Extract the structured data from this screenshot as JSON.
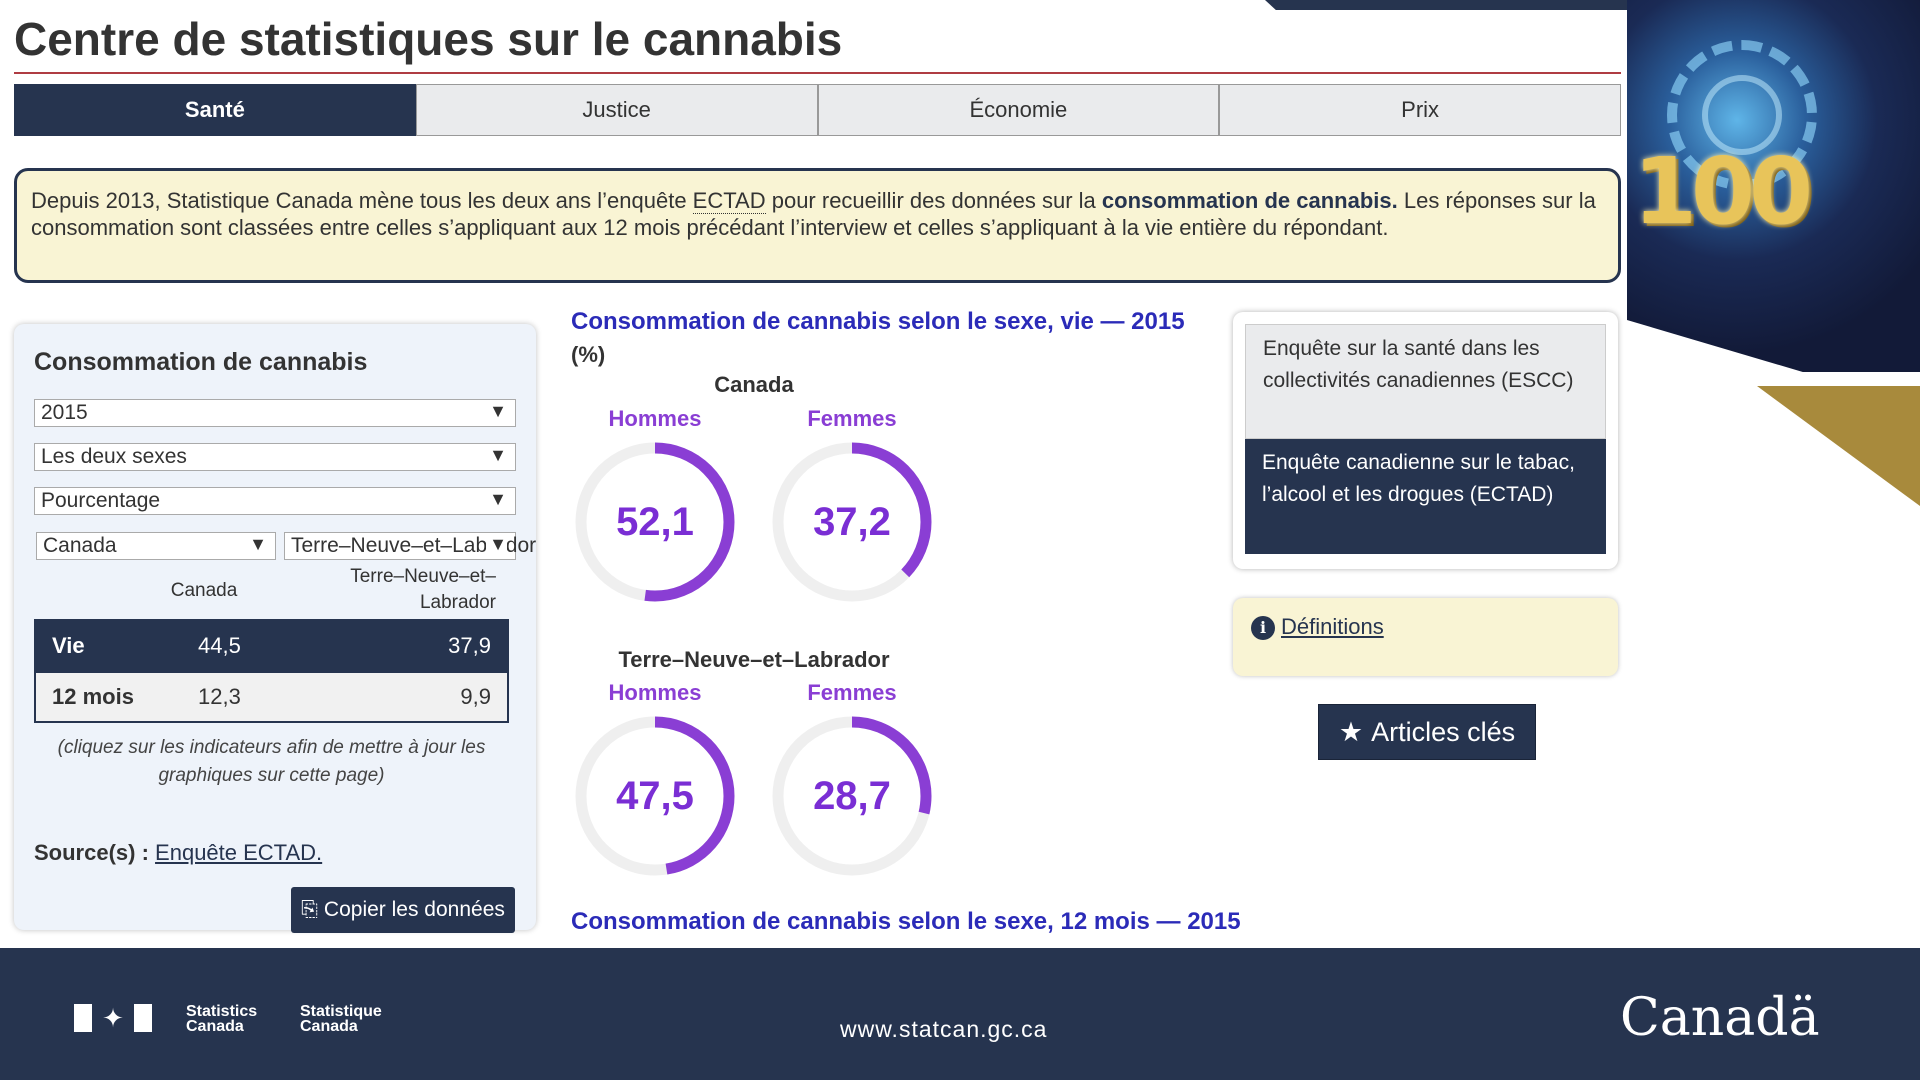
{
  "page": {
    "title": "Centre de statistiques sur le cannabis"
  },
  "tabs": [
    {
      "label": "Santé",
      "active": true
    },
    {
      "label": "Justice",
      "active": false
    },
    {
      "label": "Économie",
      "active": false
    },
    {
      "label": "Prix",
      "active": false
    }
  ],
  "info": {
    "part1": "Depuis 2013, Statistique Canada mène tous les deux ans l’enquête ",
    "abbr": "ECTAD",
    "part2": " pour recueillir des données sur la ",
    "strong": "consommation de cannabis.",
    "part3": " Les réponses sur la consommation sont classées entre celles s’appliquant aux 12 mois précédant l’interview et celles s’appliquant à la vie entière du répondant."
  },
  "left_panel": {
    "title": "Consommation de cannabis",
    "year_select": "2015",
    "sex_select": "Les deux sexes",
    "measure_select": "Pourcentage",
    "region1_select": "Canada",
    "region2_select": "Terre–Neuve–et–Labrador",
    "col1_header": "Canada",
    "col2_header": "Terre–Neuve–et–Labrador",
    "rows": [
      {
        "label": "Vie",
        "canada": "44,5",
        "region": "37,9",
        "selected": true
      },
      {
        "label": "12 mois",
        "canada": "12,3",
        "region": "9,9",
        "selected": false
      }
    ],
    "hint": "(cliquez sur les indicateurs afin de mettre à jour les graphiques sur cette page)",
    "source_label": "Source(s) :",
    "source_link": "Enquête ECTAD.",
    "copy_button": "Copier les données"
  },
  "chart": {
    "title": "Consommation de cannabis selon le sexe, vie — 2015",
    "unit": "(%)",
    "next_title": "Consommation de cannabis selon le sexe, 12 mois — 2015"
  },
  "chart_data": {
    "type": "pie",
    "groups": [
      {
        "region": "Canada",
        "items": [
          {
            "label": "Hommes",
            "value": 52.1,
            "display": "52,1"
          },
          {
            "label": "Femmes",
            "value": 37.2,
            "display": "37,2"
          }
        ]
      },
      {
        "region": "Terre–Neuve–et–Labrador",
        "items": [
          {
            "label": "Hommes",
            "value": 47.5,
            "display": "47,5"
          },
          {
            "label": "Femmes",
            "value": 28.7,
            "display": "28,7"
          }
        ]
      }
    ],
    "max": 100,
    "colors": {
      "arc": "#8a3ed4",
      "track": "#efefef"
    }
  },
  "right_panel": {
    "surveys": [
      {
        "label": "Enquête sur la santé dans les collectivités canadiennes (ESCC)",
        "active": false
      },
      {
        "label": "Enquête canadienne sur le tabac, l’alcool et les drogues (ECTAD)",
        "active": true
      }
    ],
    "definitions": "Définitions",
    "articles_button": "Articles clés"
  },
  "footer": {
    "org_en_1": "Statistics",
    "org_en_2": "Canada",
    "org_fr_1": "Statistique",
    "org_fr_2": "Canada",
    "url": "www.statcan.gc.ca",
    "wordmark": "Canadä"
  },
  "colors": {
    "navy": "#26344f",
    "red_rule": "#af3c43",
    "purple": "#8a3ed4",
    "chart_title_blue": "#2b2bb8",
    "info_bg": "#f9f4d4"
  }
}
